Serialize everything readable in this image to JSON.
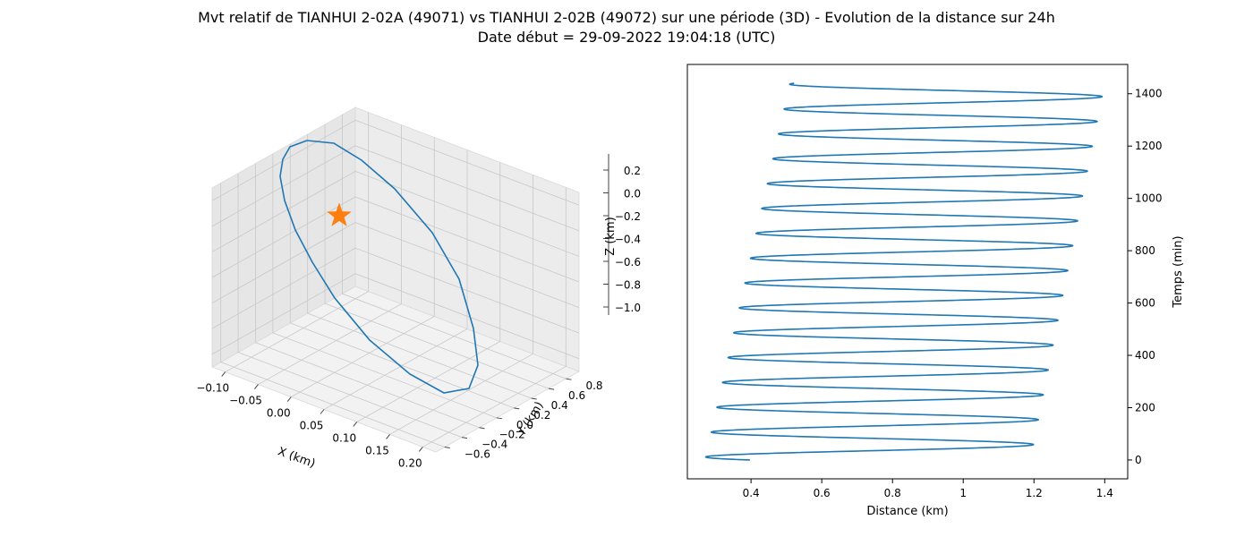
{
  "figure": {
    "title_line_1": "Mvt relatif de TIANHUI 2-02A (49071) vs TIANHUI 2-02B (49072) sur une période (3D) - Evolution de la distance sur 24h",
    "title_line_2": "Date début = 29-09-2022 19:04:18 (UTC)"
  },
  "chart_data": [
    {
      "type": "line",
      "subtype": "3d",
      "xlabel": "X (km)",
      "ylabel": "Y (km)",
      "zlabel": "Z (km)",
      "x_ticks": [
        "−0.10",
        "−0.05",
        "0.00",
        "0.05",
        "0.10",
        "0.15",
        "0.20"
      ],
      "y_ticks": [
        "−0.6",
        "−0.4",
        "−0.2",
        "0.0",
        "0.2",
        "0.4",
        "0.6",
        "0.8"
      ],
      "z_ticks": [
        "−1.0",
        "−0.8",
        "−0.6",
        "−0.4",
        "−0.2",
        "0.0",
        "0.2"
      ],
      "xlim": [
        -0.12,
        0.22
      ],
      "ylim": [
        -0.7,
        0.95
      ],
      "zlim": [
        -1.1,
        0.3
      ],
      "grid": true,
      "series": [
        {
          "color": "#1f77b4",
          "x": [
            -0.07,
            -0.02,
            0.02,
            0.06,
            0.1,
            0.14,
            0.17,
            0.19,
            0.2,
            0.2,
            0.19,
            0.17,
            0.14,
            0.1,
            0.06,
            0.02,
            -0.02,
            -0.05,
            -0.08,
            -0.1,
            -0.11,
            -0.11,
            -0.1,
            -0.07
          ],
          "y": [
            0.58,
            0.45,
            0.3,
            0.12,
            -0.05,
            -0.2,
            -0.33,
            -0.42,
            -0.48,
            -0.5,
            -0.45,
            -0.35,
            -0.22,
            -0.08,
            0.07,
            0.2,
            0.33,
            0.44,
            0.54,
            0.62,
            0.66,
            0.66,
            0.63,
            0.58
          ],
          "z": [
            0.24,
            0.22,
            0.18,
            0.1,
            0.0,
            -0.13,
            -0.28,
            -0.45,
            -0.62,
            -0.78,
            -0.9,
            -0.98,
            -1.02,
            -1.0,
            -0.94,
            -0.83,
            -0.68,
            -0.5,
            -0.31,
            -0.12,
            0.04,
            0.15,
            0.22,
            0.24
          ]
        }
      ],
      "marker": {
        "shape": "star",
        "color": "#ff7f0e",
        "x": 0.0,
        "y": 0.0,
        "z": 0.0
      }
    },
    {
      "type": "line",
      "xlabel": "Distance (km)",
      "ylabel": "Temps (min)",
      "x_ticks": [
        0.4,
        0.6,
        0.8,
        1.0,
        1.2,
        1.4
      ],
      "y_ticks": [
        0,
        200,
        400,
        600,
        800,
        1000,
        1200,
        1400
      ],
      "xlim": [
        0.22,
        1.465
      ],
      "ylim": [
        -72,
        1512
      ],
      "y_axis_side": "right",
      "grid": false,
      "series": [
        {
          "color": "#1f77b4",
          "period_min": 95,
          "t_max": 1440,
          "distance_start": 0.515,
          "min_start": 0.27,
          "min_end": 0.51,
          "max_start": 1.19,
          "max_end": 1.4,
          "first_max_t": 59,
          "first_min_t": 10
        }
      ]
    }
  ]
}
